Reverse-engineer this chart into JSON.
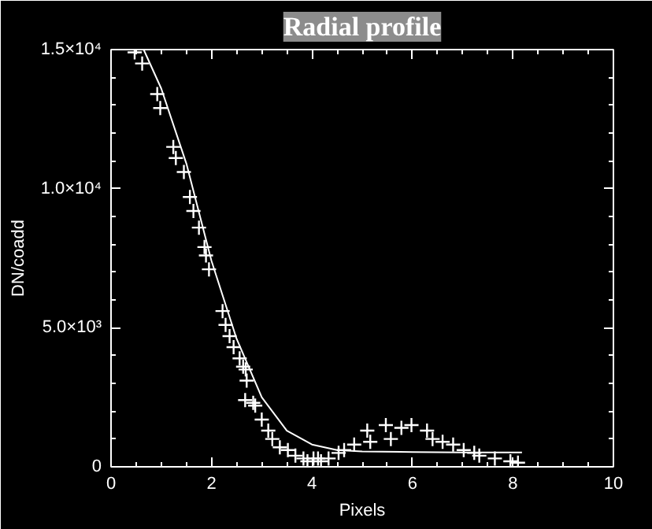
{
  "chart_data": {
    "type": "scatter",
    "title": "Radial profile",
    "xlabel": "Pixels",
    "ylabel": "DN/coadd",
    "xlim": [
      0,
      10
    ],
    "xticks": [
      0,
      2,
      4,
      6,
      8,
      10
    ],
    "ylim": [
      0,
      15000
    ],
    "yticks": [
      0,
      {
        "value": 5000,
        "label": "5.0×10³"
      },
      {
        "value": 10000,
        "label": "1.0×10⁴"
      },
      {
        "value": 15000,
        "label": "1.5×10⁴"
      }
    ],
    "grid": false,
    "marker": "cross",
    "series": [
      {
        "color": "#ffffff",
        "x": [
          0.47,
          0.62,
          0.92,
          0.98,
          1.24,
          1.29,
          1.45,
          1.57,
          1.64,
          1.75,
          1.86,
          1.89,
          1.95,
          2.22,
          2.28,
          2.36,
          2.44,
          2.56,
          2.63,
          2.68,
          2.7,
          2.67,
          2.83,
          2.87,
          3.0,
          3.13,
          3.21,
          3.36,
          3.52,
          3.67,
          3.83,
          3.91,
          4.03,
          4.12,
          4.18,
          4.33,
          4.53,
          4.64,
          4.84,
          5.1,
          5.16,
          5.47,
          5.57,
          5.78,
          5.98,
          6.29,
          6.4,
          6.6,
          6.81,
          7.02,
          7.23,
          7.33,
          7.64,
          7.95,
          8.1
        ],
        "values": [
          14900,
          14500,
          13400,
          12900,
          11500,
          11100,
          10600,
          9700,
          9200,
          8600,
          7900,
          7600,
          7100,
          5600,
          5100,
          4700,
          4300,
          3900,
          3600,
          3500,
          3100,
          2400,
          2300,
          2200,
          1700,
          1300,
          1000,
          700,
          600,
          400,
          300,
          200,
          300,
          300,
          200,
          300,
          500,
          600,
          800,
          1300,
          900,
          1500,
          1000,
          1400,
          1500,
          1300,
          1000,
          900,
          800,
          600,
          500,
          400,
          300,
          200,
          150
        ]
      },
      {
        "type": "line",
        "color": "#ffffff",
        "line_style": "solid",
        "marker": "none",
        "x": [
          0.65,
          1.0,
          1.5,
          2.0,
          2.5,
          3.0,
          3.5,
          4.0,
          4.5,
          5.0,
          6.0,
          7.0,
          8.18
        ],
        "values": [
          15000,
          13600,
          10900,
          7400,
          4600,
          2500,
          1300,
          800,
          600,
          550,
          530,
          520,
          520
        ]
      }
    ]
  }
}
